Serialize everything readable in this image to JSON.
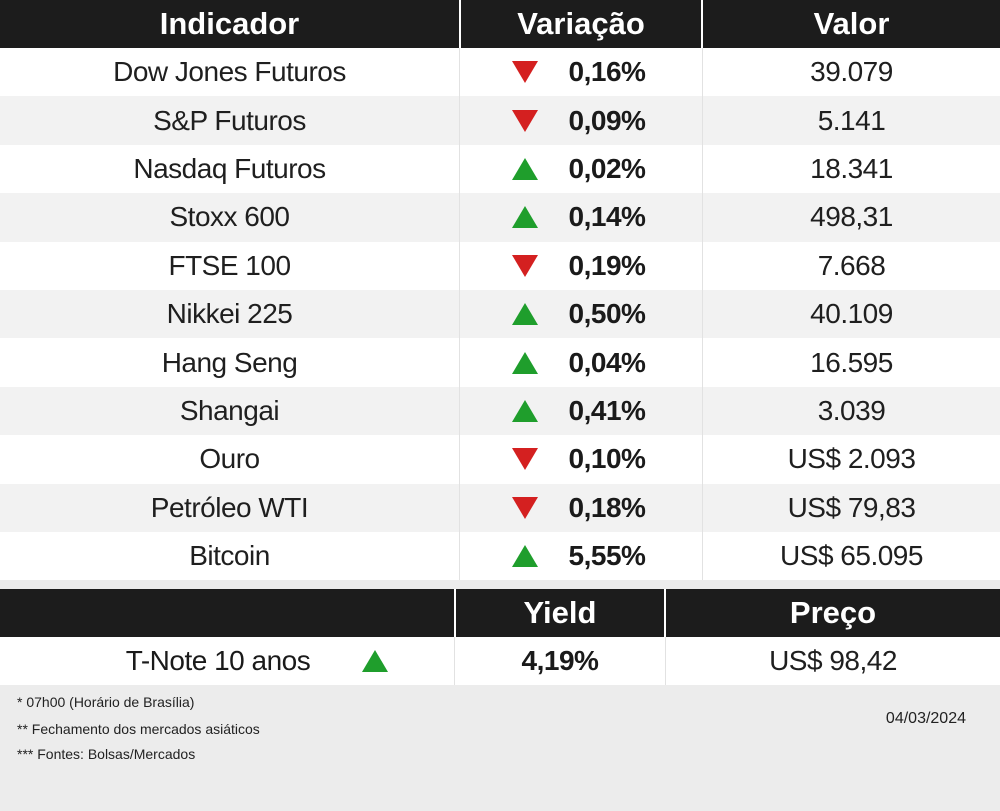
{
  "headers": {
    "indicator": "Indicador",
    "variation": "Variação",
    "value": "Valor"
  },
  "rows": [
    {
      "name": "Dow Jones Futuros",
      "direction": "down",
      "variation": "0,16%",
      "value": "39.079"
    },
    {
      "name": "S&P Futuros",
      "direction": "down",
      "variation": "0,09%",
      "value": "5.141"
    },
    {
      "name": "Nasdaq Futuros",
      "direction": "up",
      "variation": "0,02%",
      "value": "18.341"
    },
    {
      "name": "Stoxx 600",
      "direction": "up",
      "variation": "0,14%",
      "value": "498,31"
    },
    {
      "name": "FTSE 100",
      "direction": "down",
      "variation": "0,19%",
      "value": "7.668"
    },
    {
      "name": "Nikkei 225",
      "direction": "up",
      "variation": "0,50%",
      "value": "40.109"
    },
    {
      "name": "Hang Seng",
      "direction": "up",
      "variation": "0,04%",
      "value": "16.595"
    },
    {
      "name": "Shangai",
      "direction": "up",
      "variation": "0,41%",
      "value": "3.039"
    },
    {
      "name": "Ouro",
      "direction": "down",
      "variation": "0,10%",
      "value": "US$ 2.093"
    },
    {
      "name": "Petróleo WTI",
      "direction": "down",
      "variation": "0,18%",
      "value": "US$ 79,83"
    },
    {
      "name": "Bitcoin",
      "direction": "up",
      "variation": "5,55%",
      "value": "US$ 65.095"
    }
  ],
  "tnote": {
    "headers": {
      "blank": "",
      "yield": "Yield",
      "price": "Preço"
    },
    "name": "T-Note 10 anos",
    "direction": "up",
    "yield": "4,19%",
    "price": "US$ 98,42"
  },
  "footer": {
    "notes": [
      "* 07h00 (Horário de Brasília)",
      "** Fechamento dos mercados asiáticos",
      "*** Fontes: Bolsas/Mercados"
    ],
    "date": "04/03/2024"
  },
  "colors": {
    "up": "#1f9e2c",
    "down": "#d42020",
    "header_bg": "#1c1c1c"
  },
  "icons": {
    "up": "triangle-up-icon",
    "down": "triangle-down-icon"
  }
}
